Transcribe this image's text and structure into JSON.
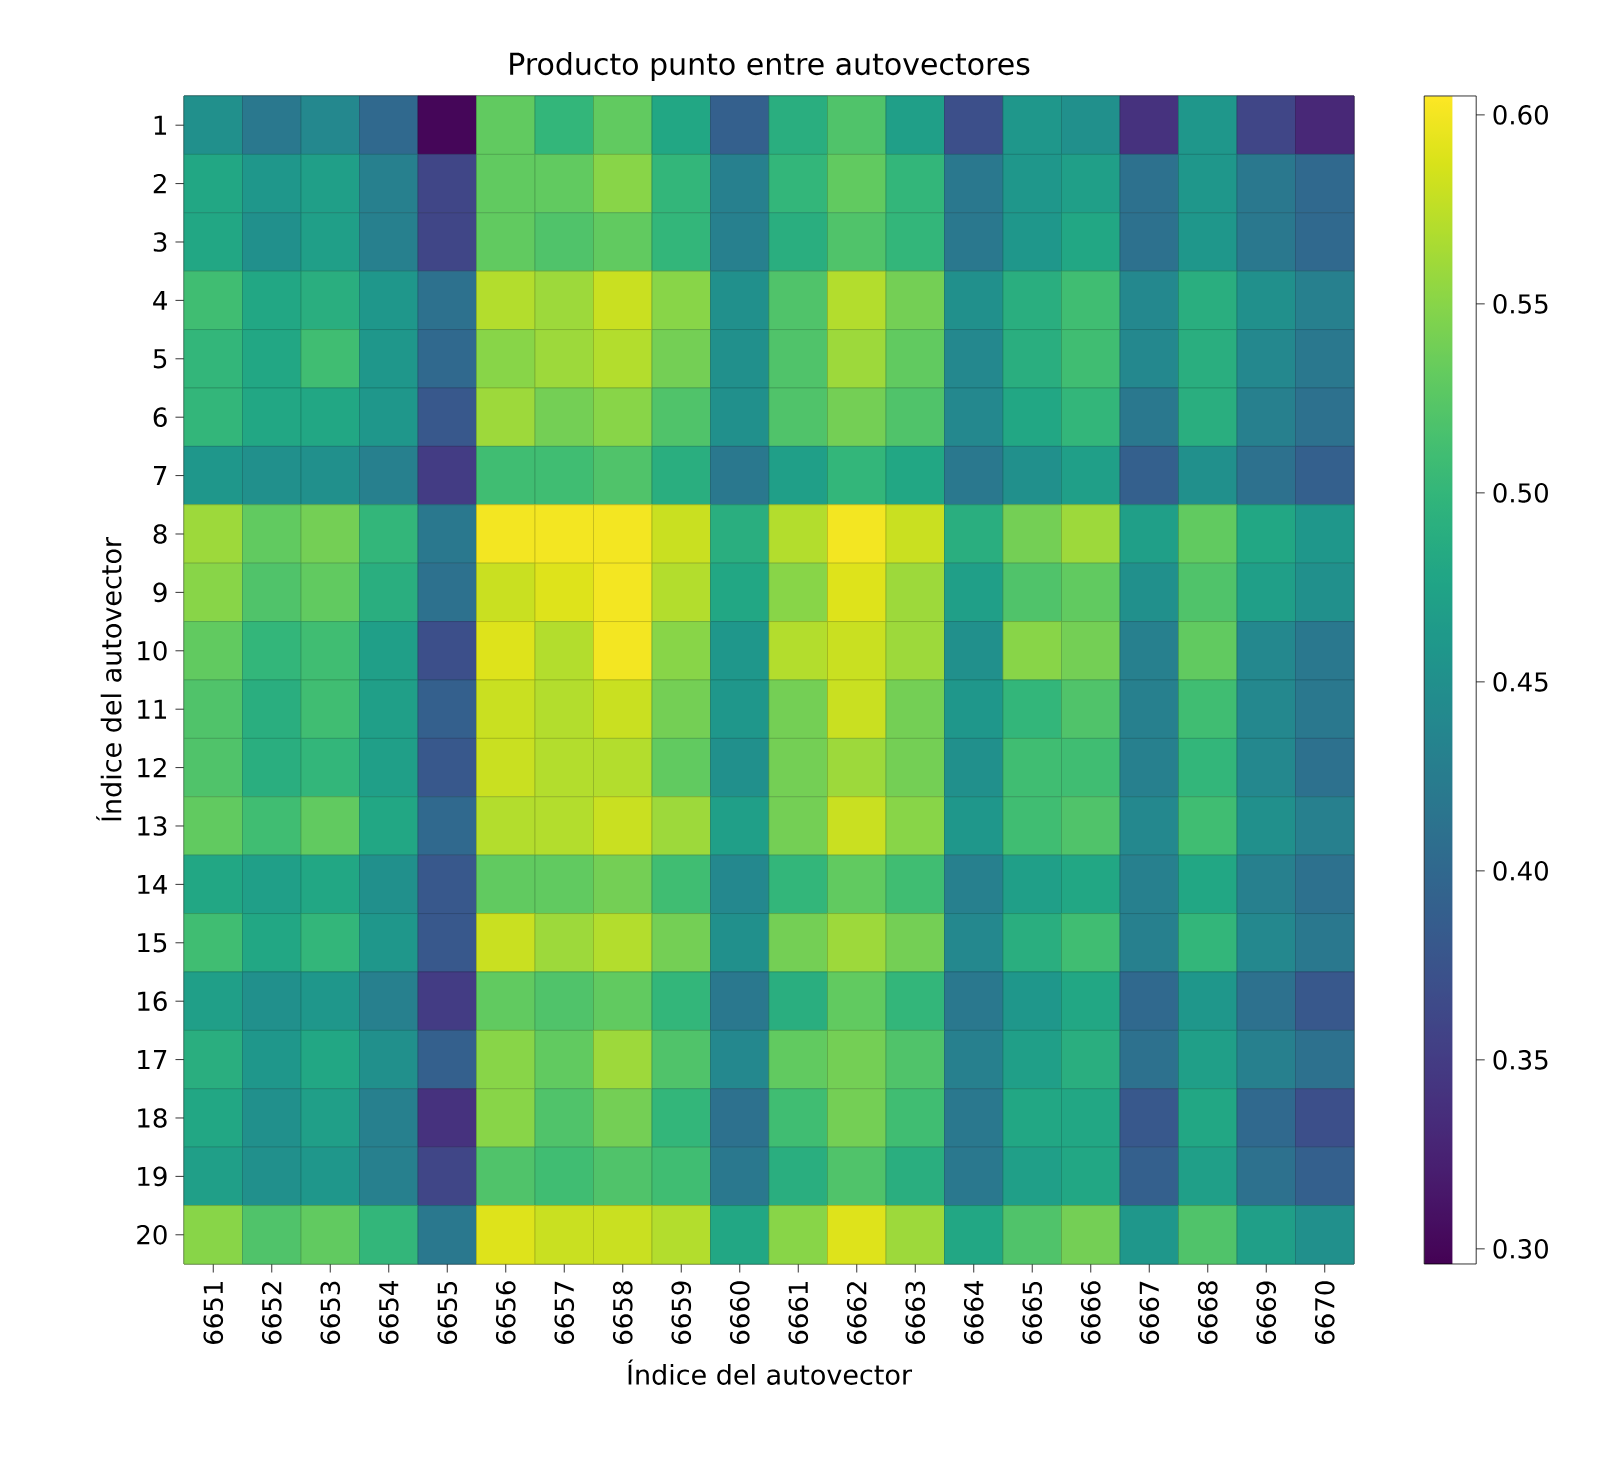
{
  "chart_data": {
    "type": "heatmap",
    "title": "Producto punto entre autovectores",
    "xlabel": "Índice del autovector",
    "ylabel": "Índice del autovector",
    "categories": [
      "6651",
      "6652",
      "6653",
      "6654",
      "6655",
      "6656",
      "6657",
      "6658",
      "6659",
      "6660",
      "6661",
      "6662",
      "6663",
      "6664",
      "6665",
      "6666",
      "6667",
      "6668",
      "6669",
      "6670"
    ],
    "y_categories": [
      "1",
      "2",
      "3",
      "4",
      "5",
      "6",
      "7",
      "8",
      "9",
      "10",
      "11",
      "12",
      "13",
      "14",
      "15",
      "16",
      "17",
      "18",
      "19",
      "20"
    ],
    "cells": [
      [
        0.45,
        0.42,
        0.44,
        0.4,
        0.3,
        0.53,
        0.5,
        0.53,
        0.48,
        0.39,
        0.49,
        0.52,
        0.47,
        0.37,
        0.46,
        0.45,
        0.34,
        0.46,
        0.36,
        0.33
      ],
      [
        0.48,
        0.46,
        0.47,
        0.43,
        0.36,
        0.53,
        0.53,
        0.55,
        0.5,
        0.43,
        0.5,
        0.53,
        0.5,
        0.42,
        0.46,
        0.47,
        0.41,
        0.46,
        0.42,
        0.4
      ],
      [
        0.48,
        0.45,
        0.47,
        0.43,
        0.36,
        0.53,
        0.52,
        0.53,
        0.5,
        0.43,
        0.49,
        0.52,
        0.5,
        0.42,
        0.46,
        0.48,
        0.41,
        0.46,
        0.42,
        0.4
      ],
      [
        0.51,
        0.48,
        0.49,
        0.46,
        0.41,
        0.57,
        0.56,
        0.58,
        0.55,
        0.45,
        0.52,
        0.57,
        0.54,
        0.45,
        0.49,
        0.51,
        0.44,
        0.49,
        0.45,
        0.43
      ],
      [
        0.5,
        0.48,
        0.51,
        0.46,
        0.4,
        0.55,
        0.56,
        0.57,
        0.54,
        0.45,
        0.52,
        0.56,
        0.53,
        0.44,
        0.49,
        0.51,
        0.44,
        0.49,
        0.44,
        0.42
      ],
      [
        0.5,
        0.48,
        0.48,
        0.46,
        0.38,
        0.56,
        0.54,
        0.55,
        0.52,
        0.45,
        0.52,
        0.54,
        0.52,
        0.44,
        0.48,
        0.5,
        0.42,
        0.49,
        0.43,
        0.41
      ],
      [
        0.46,
        0.45,
        0.45,
        0.43,
        0.35,
        0.51,
        0.51,
        0.52,
        0.49,
        0.42,
        0.47,
        0.5,
        0.48,
        0.42,
        0.45,
        0.47,
        0.39,
        0.45,
        0.41,
        0.39
      ],
      [
        0.56,
        0.53,
        0.54,
        0.5,
        0.42,
        0.6,
        0.6,
        0.6,
        0.58,
        0.49,
        0.57,
        0.6,
        0.58,
        0.49,
        0.54,
        0.56,
        0.47,
        0.53,
        0.48,
        0.46
      ],
      [
        0.55,
        0.52,
        0.53,
        0.49,
        0.41,
        0.58,
        0.59,
        0.6,
        0.57,
        0.48,
        0.55,
        0.59,
        0.56,
        0.47,
        0.52,
        0.53,
        0.45,
        0.52,
        0.47,
        0.45
      ],
      [
        0.53,
        0.5,
        0.51,
        0.47,
        0.37,
        0.59,
        0.57,
        0.6,
        0.55,
        0.46,
        0.57,
        0.58,
        0.56,
        0.45,
        0.55,
        0.54,
        0.43,
        0.53,
        0.44,
        0.42
      ],
      [
        0.52,
        0.49,
        0.51,
        0.47,
        0.39,
        0.58,
        0.57,
        0.58,
        0.54,
        0.46,
        0.54,
        0.58,
        0.54,
        0.46,
        0.5,
        0.52,
        0.43,
        0.51,
        0.44,
        0.42
      ],
      [
        0.52,
        0.49,
        0.5,
        0.47,
        0.38,
        0.58,
        0.57,
        0.57,
        0.53,
        0.45,
        0.54,
        0.56,
        0.54,
        0.45,
        0.51,
        0.51,
        0.43,
        0.5,
        0.44,
        0.41
      ],
      [
        0.53,
        0.51,
        0.53,
        0.48,
        0.4,
        0.57,
        0.57,
        0.58,
        0.56,
        0.47,
        0.54,
        0.58,
        0.55,
        0.46,
        0.51,
        0.52,
        0.44,
        0.51,
        0.45,
        0.43
      ],
      [
        0.48,
        0.47,
        0.48,
        0.45,
        0.38,
        0.53,
        0.53,
        0.54,
        0.51,
        0.44,
        0.5,
        0.53,
        0.51,
        0.43,
        0.47,
        0.48,
        0.43,
        0.48,
        0.43,
        0.41
      ],
      [
        0.51,
        0.48,
        0.5,
        0.46,
        0.38,
        0.58,
        0.56,
        0.57,
        0.54,
        0.45,
        0.54,
        0.56,
        0.54,
        0.44,
        0.49,
        0.51,
        0.43,
        0.5,
        0.44,
        0.42
      ],
      [
        0.47,
        0.45,
        0.46,
        0.43,
        0.35,
        0.53,
        0.52,
        0.53,
        0.5,
        0.42,
        0.49,
        0.53,
        0.5,
        0.42,
        0.46,
        0.48,
        0.4,
        0.46,
        0.41,
        0.38
      ],
      [
        0.49,
        0.46,
        0.48,
        0.45,
        0.39,
        0.55,
        0.53,
        0.56,
        0.52,
        0.44,
        0.53,
        0.54,
        0.52,
        0.43,
        0.47,
        0.49,
        0.41,
        0.47,
        0.43,
        0.41
      ],
      [
        0.48,
        0.45,
        0.47,
        0.43,
        0.34,
        0.55,
        0.52,
        0.54,
        0.5,
        0.41,
        0.51,
        0.54,
        0.51,
        0.42,
        0.48,
        0.48,
        0.38,
        0.48,
        0.4,
        0.37
      ],
      [
        0.47,
        0.45,
        0.46,
        0.43,
        0.36,
        0.52,
        0.51,
        0.52,
        0.51,
        0.42,
        0.49,
        0.52,
        0.49,
        0.42,
        0.47,
        0.48,
        0.39,
        0.47,
        0.41,
        0.39
      ],
      [
        0.55,
        0.52,
        0.53,
        0.5,
        0.42,
        0.59,
        0.58,
        0.58,
        0.57,
        0.48,
        0.55,
        0.59,
        0.56,
        0.48,
        0.52,
        0.54,
        0.46,
        0.52,
        0.47,
        0.45
      ]
    ],
    "clim": [
      0.296,
      0.605
    ],
    "cticks": [
      {
        "value": 0.3,
        "label": "0.30"
      },
      {
        "value": 0.35,
        "label": "0.35"
      },
      {
        "value": 0.4,
        "label": "0.40"
      },
      {
        "value": 0.45,
        "label": "0.45"
      },
      {
        "value": 0.5,
        "label": "0.50"
      },
      {
        "value": 0.55,
        "label": "0.55"
      },
      {
        "value": 0.6,
        "label": "0.60"
      }
    ]
  }
}
